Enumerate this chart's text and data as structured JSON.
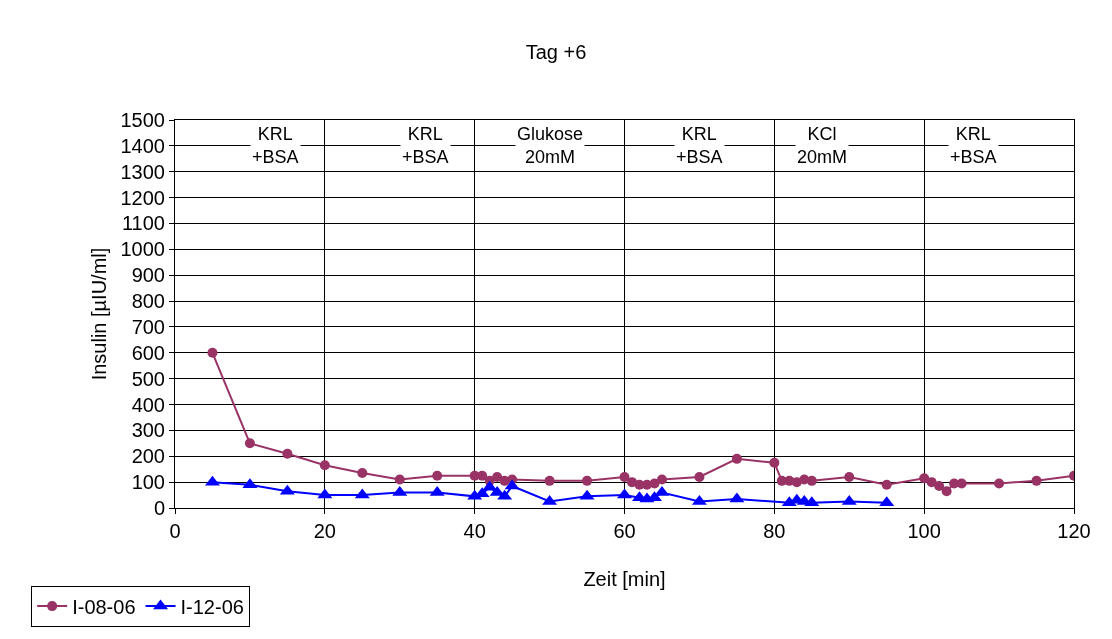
{
  "chart_data": {
    "type": "line",
    "title": "Tag +6",
    "xlabel": "Zeit [min]",
    "ylabel": "Insulin [µIU/ml]",
    "xlim": [
      0,
      120
    ],
    "xticks": [
      0,
      20,
      40,
      60,
      80,
      100,
      120
    ],
    "ylim": [
      0,
      1500
    ],
    "yticks": [
      0,
      100,
      200,
      300,
      400,
      500,
      600,
      700,
      800,
      900,
      1000,
      1100,
      1200,
      1300,
      1400,
      1500
    ],
    "grid": true,
    "legend": "bottom left",
    "line_style": "solid",
    "annotations": [
      "KRL\n+BSA",
      "KRL\n+BSA",
      "Glukose\n20mM",
      "KRL\n+BSA",
      "KCl\n20mM",
      "KRL\n+BSA"
    ],
    "series": [
      {
        "name": "I-08-06",
        "color": "#993366",
        "marker": "circle",
        "x": [
          5,
          10,
          15,
          20,
          25,
          30,
          35,
          40,
          41,
          42,
          43,
          44,
          45,
          50,
          55,
          60,
          61,
          62,
          63,
          64,
          65,
          70,
          75,
          80,
          81,
          82,
          83,
          84,
          85,
          90,
          95,
          100,
          101,
          102,
          103,
          104,
          105,
          110,
          115,
          120
        ],
        "values": [
          600,
          250,
          210,
          165,
          135,
          110,
          125,
          125,
          125,
          105,
          120,
          105,
          110,
          105,
          105,
          120,
          100,
          90,
          90,
          95,
          110,
          120,
          190,
          175,
          105,
          105,
          100,
          110,
          105,
          120,
          90,
          115,
          100,
          85,
          65,
          95,
          95,
          95,
          105,
          125
        ]
      },
      {
        "name": "I-12-06",
        "color": "#0000ff",
        "marker": "triangle",
        "x": [
          5,
          10,
          15,
          20,
          25,
          30,
          35,
          40,
          41,
          42,
          43,
          44,
          45,
          50,
          55,
          60,
          62,
          63,
          64,
          65,
          70,
          75,
          82,
          83,
          84,
          85,
          90,
          95
        ],
        "values": [
          100,
          90,
          65,
          50,
          50,
          60,
          60,
          45,
          55,
          80,
          60,
          45,
          85,
          25,
          45,
          50,
          40,
          35,
          40,
          60,
          25,
          35,
          20,
          30,
          25,
          20,
          25,
          20
        ]
      }
    ]
  }
}
